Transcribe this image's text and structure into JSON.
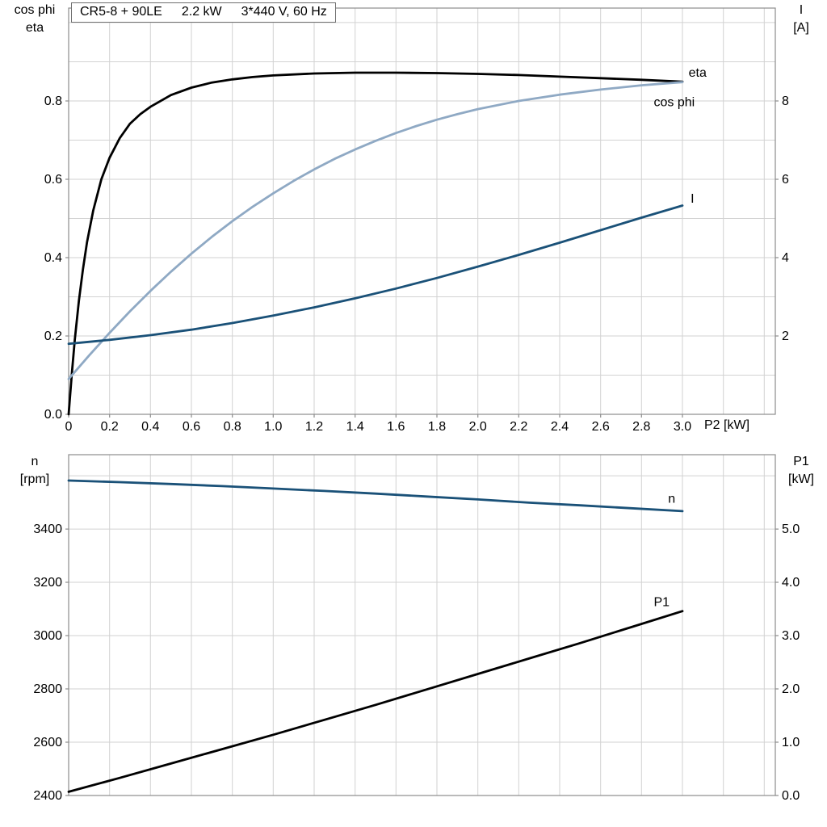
{
  "colors": {
    "black": "#000000",
    "light_blue": "#8fa9c4",
    "dark_blue": "#1a5178",
    "grid": "#d2d2d2",
    "axis": "#8c8c8c",
    "text": "#000000"
  },
  "chart_data": [
    {
      "type": "line",
      "name": "motor-efficiency-chart",
      "title_parts": [
        "CR5-8 + 90LE",
        "2.2 kW",
        "3*440 V, 60 Hz"
      ],
      "x": {
        "label": "P2 [kW]",
        "min": 0,
        "max": 3.454,
        "data_max": 3.0,
        "grid_step": 0.2,
        "grid_max": 3.4,
        "ticks": [
          0,
          0.2,
          0.4,
          0.6,
          0.8,
          1.0,
          1.2,
          1.4,
          1.6,
          1.8,
          2.0,
          2.2,
          2.4,
          2.6,
          2.8,
          3.0
        ],
        "tick_labels": [
          "0",
          "0.2",
          "0.4",
          "0.6",
          "0.8",
          "1.0",
          "1.2",
          "1.4",
          "1.6",
          "1.8",
          "2.0",
          "2.2",
          "2.4",
          "2.6",
          "2.8",
          "3.0"
        ]
      },
      "y_left": {
        "label_lines": [
          "cos phi",
          "eta"
        ],
        "min": 0,
        "max": 1.037,
        "grid_step": 0.1,
        "ticks": [
          0,
          0.2,
          0.4,
          0.6,
          0.8
        ],
        "tick_labels": [
          "0.0",
          "0.2",
          "0.4",
          "0.6",
          "0.8"
        ]
      },
      "y_right": {
        "label_lines": [
          "I",
          "[A]"
        ],
        "min": 0,
        "max": 10.37,
        "ticks": [
          2,
          4,
          6,
          8
        ],
        "tick_labels": [
          "2",
          "4",
          "6",
          "8"
        ]
      },
      "series": [
        {
          "id": "eta",
          "label": "eta",
          "axis": "left",
          "color": "#000000",
          "label_pos": [
            3.03,
            0.862
          ],
          "points": [
            [
              0,
              0
            ],
            [
              0.015,
              0.1
            ],
            [
              0.03,
              0.19
            ],
            [
              0.05,
              0.29
            ],
            [
              0.07,
              0.37
            ],
            [
              0.09,
              0.44
            ],
            [
              0.12,
              0.52
            ],
            [
              0.16,
              0.6
            ],
            [
              0.2,
              0.655
            ],
            [
              0.25,
              0.705
            ],
            [
              0.3,
              0.742
            ],
            [
              0.35,
              0.766
            ],
            [
              0.4,
              0.785
            ],
            [
              0.5,
              0.815
            ],
            [
              0.6,
              0.834
            ],
            [
              0.7,
              0.847
            ],
            [
              0.8,
              0.855
            ],
            [
              0.9,
              0.861
            ],
            [
              1.0,
              0.865
            ],
            [
              1.2,
              0.87
            ],
            [
              1.4,
              0.872
            ],
            [
              1.6,
              0.872
            ],
            [
              1.8,
              0.871
            ],
            [
              2.0,
              0.869
            ],
            [
              2.2,
              0.866
            ],
            [
              2.4,
              0.862
            ],
            [
              2.6,
              0.858
            ],
            [
              2.8,
              0.854
            ],
            [
              3.0,
              0.849
            ]
          ]
        },
        {
          "id": "cos-phi",
          "label": "cos phi",
          "axis": "left",
          "color": "#8fa9c4",
          "label_pos": [
            2.86,
            0.787
          ],
          "points": [
            [
              0,
              0.09
            ],
            [
              0.1,
              0.15
            ],
            [
              0.2,
              0.208
            ],
            [
              0.3,
              0.263
            ],
            [
              0.4,
              0.315
            ],
            [
              0.5,
              0.364
            ],
            [
              0.6,
              0.41
            ],
            [
              0.7,
              0.453
            ],
            [
              0.8,
              0.493
            ],
            [
              0.9,
              0.53
            ],
            [
              1.0,
              0.564
            ],
            [
              1.1,
              0.596
            ],
            [
              1.2,
              0.625
            ],
            [
              1.3,
              0.652
            ],
            [
              1.4,
              0.676
            ],
            [
              1.5,
              0.698
            ],
            [
              1.6,
              0.718
            ],
            [
              1.7,
              0.736
            ],
            [
              1.8,
              0.752
            ],
            [
              1.9,
              0.766
            ],
            [
              2.0,
              0.779
            ],
            [
              2.2,
              0.8
            ],
            [
              2.4,
              0.816
            ],
            [
              2.6,
              0.829
            ],
            [
              2.8,
              0.84
            ],
            [
              3.0,
              0.848
            ]
          ]
        },
        {
          "id": "current",
          "label": "I",
          "axis": "right",
          "color": "#1a5178",
          "label_pos": [
            3.04,
            5.4
          ],
          "points": [
            [
              0,
              1.8
            ],
            [
              0.2,
              1.9
            ],
            [
              0.4,
              2.02
            ],
            [
              0.6,
              2.16
            ],
            [
              0.8,
              2.33
            ],
            [
              1.0,
              2.52
            ],
            [
              1.2,
              2.73
            ],
            [
              1.4,
              2.96
            ],
            [
              1.6,
              3.21
            ],
            [
              1.8,
              3.48
            ],
            [
              2.0,
              3.77
            ],
            [
              2.2,
              4.07
            ],
            [
              2.4,
              4.38
            ],
            [
              2.6,
              4.7
            ],
            [
              2.8,
              5.02
            ],
            [
              3.0,
              5.33
            ]
          ]
        }
      ]
    },
    {
      "type": "line",
      "name": "motor-speed-power-chart",
      "x": {
        "label": "",
        "min": 0,
        "max": 3.454,
        "data_max": 3.0,
        "grid_step": 0.2,
        "grid_max": 3.4,
        "ticks": [],
        "tick_labels": []
      },
      "y_left": {
        "label_lines": [
          "n",
          "[rpm]"
        ],
        "min": 2400,
        "max": 3679,
        "grid_step": 200,
        "ticks": [
          2400,
          2600,
          2800,
          3000,
          3200,
          3400
        ],
        "tick_labels": [
          "2400",
          "2600",
          "2800",
          "3000",
          "3200",
          "3400"
        ]
      },
      "y_right": {
        "label_lines": [
          "P1",
          "[kW]"
        ],
        "min": 0,
        "max": 6.395,
        "ticks": [
          0,
          1,
          2,
          3,
          4,
          5
        ],
        "tick_labels": [
          "0.0",
          "1.0",
          "2.0",
          "3.0",
          "4.0",
          "5.0"
        ]
      },
      "series": [
        {
          "id": "speed",
          "label": "n",
          "axis": "left",
          "color": "#1a5178",
          "label_pos": [
            2.93,
            3498
          ],
          "points": [
            [
              0,
              3582
            ],
            [
              0.25,
              3576
            ],
            [
              0.5,
              3569
            ],
            [
              0.75,
              3561
            ],
            [
              1.0,
              3552
            ],
            [
              1.25,
              3543
            ],
            [
              1.5,
              3533
            ],
            [
              1.75,
              3522
            ],
            [
              2.0,
              3511
            ],
            [
              2.25,
              3499
            ],
            [
              2.5,
              3489
            ],
            [
              2.75,
              3478
            ],
            [
              3.0,
              3467
            ]
          ]
        },
        {
          "id": "input-power",
          "label": "P1",
          "axis": "right",
          "color": "#000000",
          "label_pos": [
            2.86,
            3.55
          ],
          "points": [
            [
              0,
              0.07
            ],
            [
              0.25,
              0.33
            ],
            [
              0.5,
              0.6
            ],
            [
              0.75,
              0.87
            ],
            [
              1.0,
              1.14
            ],
            [
              1.25,
              1.42
            ],
            [
              1.5,
              1.7
            ],
            [
              1.75,
              1.99
            ],
            [
              2.0,
              2.28
            ],
            [
              2.25,
              2.57
            ],
            [
              2.5,
              2.86
            ],
            [
              2.75,
              3.16
            ],
            [
              3.0,
              3.46
            ]
          ]
        }
      ]
    }
  ]
}
